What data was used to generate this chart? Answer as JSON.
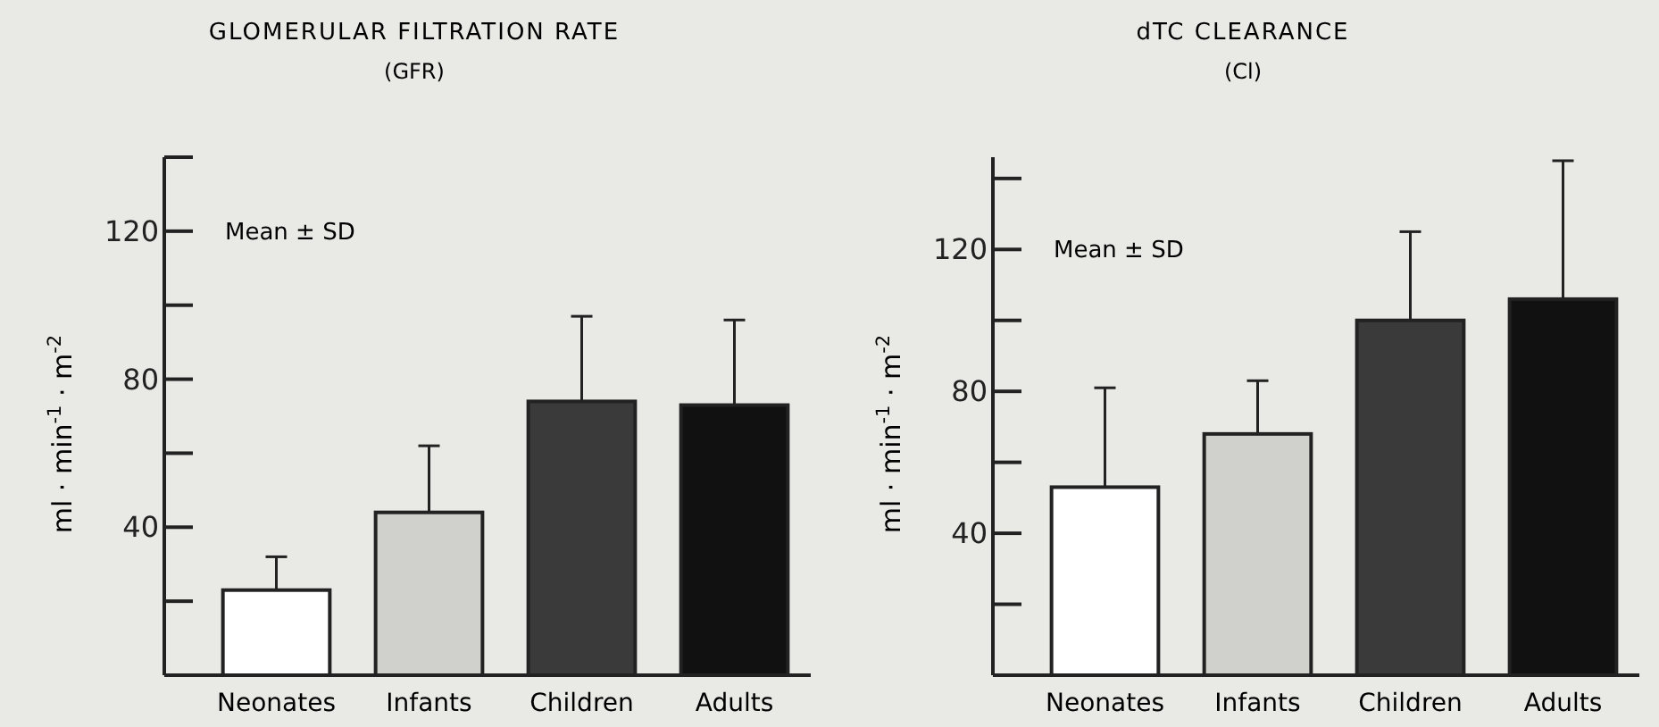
{
  "chart_data": [
    {
      "type": "bar",
      "title": "GLOMERULAR FILTRATION RATE",
      "subtitle": "(GFR)",
      "ylabel": "ml · min$^{-1}$ · m$^{-2}$",
      "annotations": [
        "Mean ± SD"
      ],
      "categories": [
        "Neonates",
        "Infants",
        "Children",
        "Adults"
      ],
      "values": [
        23,
        44,
        74,
        73
      ],
      "errors": [
        9,
        18,
        23,
        23
      ],
      "colors": [
        "#ffffff",
        "#d0d0cc",
        "#3a3a3a",
        "#111111"
      ],
      "ylim": [
        0,
        140
      ],
      "yticks": [
        {
          "value": 20,
          "label": null
        },
        40,
        {
          "value": 60,
          "label": null
        },
        80,
        {
          "value": 100,
          "label": null
        },
        120,
        {
          "value": 140,
          "label": null
        }
      ]
    },
    {
      "type": "bar",
      "title": "dTC CLEARANCE",
      "subtitle": "(Cl)",
      "ylabel": "ml · min$^{-1}$ · m$^{-2}$",
      "annotations": [
        "Mean ± SD"
      ],
      "categories": [
        "Neonates",
        "Infants",
        "Children",
        "Adults"
      ],
      "values": [
        53,
        68,
        100,
        106
      ],
      "errors": [
        28,
        15,
        25,
        39
      ],
      "colors": [
        "#ffffff",
        "#d0d0cc",
        "#3a3a3a",
        "#111111"
      ],
      "ylim": [
        0,
        146
      ],
      "yticks": [
        {
          "value": 20,
          "label": null
        },
        40,
        {
          "value": 60,
          "label": null
        },
        80,
        {
          "value": 100,
          "label": null
        },
        120,
        {
          "value": 140,
          "label": null
        }
      ]
    }
  ]
}
